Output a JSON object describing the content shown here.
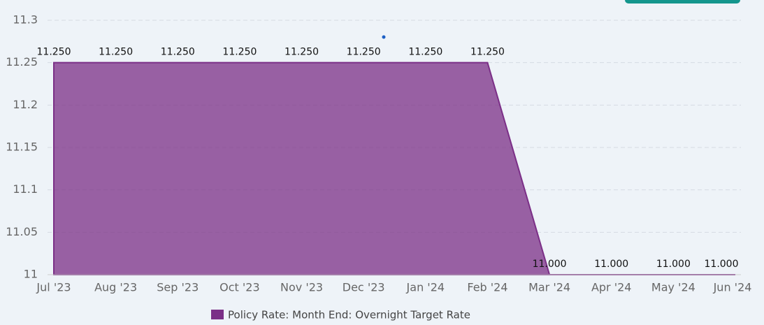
{
  "chart_data": {
    "type": "area",
    "categories": [
      "Jul '23",
      "Aug '23",
      "Sep '23",
      "Oct '23",
      "Nov '23",
      "Dec '23",
      "Jan '24",
      "Feb '24",
      "Mar '24",
      "Apr '24",
      "May '24",
      "Jun '24"
    ],
    "series": [
      {
        "name": "Policy Rate: Month End: Overnight Target Rate",
        "color": "#7b2f87",
        "values": [
          11.25,
          11.25,
          11.25,
          11.25,
          11.25,
          11.25,
          11.25,
          11.25,
          11.0,
          11.0,
          11.0,
          11.0
        ],
        "value_labels": [
          "11.250",
          "11.250",
          "11.250",
          "11.250",
          "11.250",
          "11.250",
          "11.250",
          "11.250",
          "11.000",
          "11.000",
          "11.000",
          "11.000"
        ]
      }
    ],
    "ylim": [
      11,
      11.3
    ],
    "yticks": [
      11,
      11.05,
      11.1,
      11.15,
      11.2,
      11.25,
      11.3
    ],
    "grid": true
  }
}
